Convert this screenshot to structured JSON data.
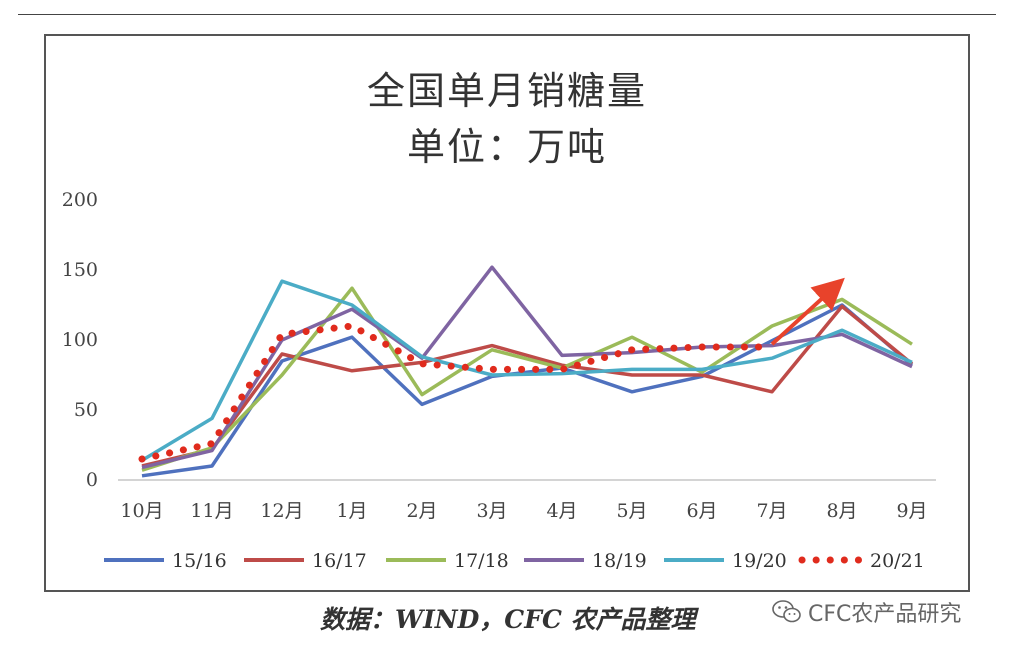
{
  "chart_data": {
    "type": "line",
    "title": "全国单月销糖量",
    "subtitle": "单位：万吨",
    "categories": [
      "10月",
      "11月",
      "12月",
      "1月",
      "2月",
      "3月",
      "4月",
      "5月",
      "6月",
      "7月",
      "8月",
      "9月"
    ],
    "yticks": [
      "0",
      "50",
      "100",
      "150",
      "200"
    ],
    "ylim": [
      0,
      200
    ],
    "legend_position": "bottom",
    "grid": false,
    "series": [
      {
        "name": "15/16",
        "color": "#4F71BE",
        "style": "solid",
        "values": [
          3,
          10,
          85,
          102,
          54,
          74,
          80,
          63,
          74,
          null,
          125,
          82
        ]
      },
      {
        "name": "16/17",
        "color": "#BE4B48",
        "style": "solid",
        "values": [
          10,
          22,
          90,
          78,
          84,
          96,
          82,
          75,
          75,
          63,
          124,
          83
        ]
      },
      {
        "name": "17/18",
        "color": "#9BBB59",
        "style": "solid",
        "values": [
          7,
          23,
          75,
          137,
          61,
          93,
          80,
          102,
          77,
          110,
          129,
          97
        ]
      },
      {
        "name": "18/19",
        "color": "#7F64A2",
        "style": "solid",
        "values": [
          9,
          21,
          100,
          122,
          87,
          152,
          89,
          91,
          95,
          96,
          104,
          81
        ]
      },
      {
        "name": "19/20",
        "color": "#4BACC6",
        "style": "solid",
        "values": [
          14,
          44,
          142,
          125,
          88,
          75,
          76,
          79,
          79,
          87,
          107,
          84
        ]
      },
      {
        "name": "20/21",
        "color": "#E02B1D",
        "style": "dotted",
        "values": [
          15,
          26,
          104,
          110,
          83,
          79,
          79,
          93,
          95,
          95,
          null,
          null
        ]
      }
    ],
    "annotation": {
      "type": "arrow",
      "color": "#E8432B",
      "from_category": "7月",
      "from_value": 97,
      "to_category": "8月",
      "to_value": 143
    }
  },
  "source_text": "数据：WIND，CFC 农产品整理",
  "watermark": {
    "icon": "wechat-icon",
    "text": "CFC农产品研究"
  }
}
